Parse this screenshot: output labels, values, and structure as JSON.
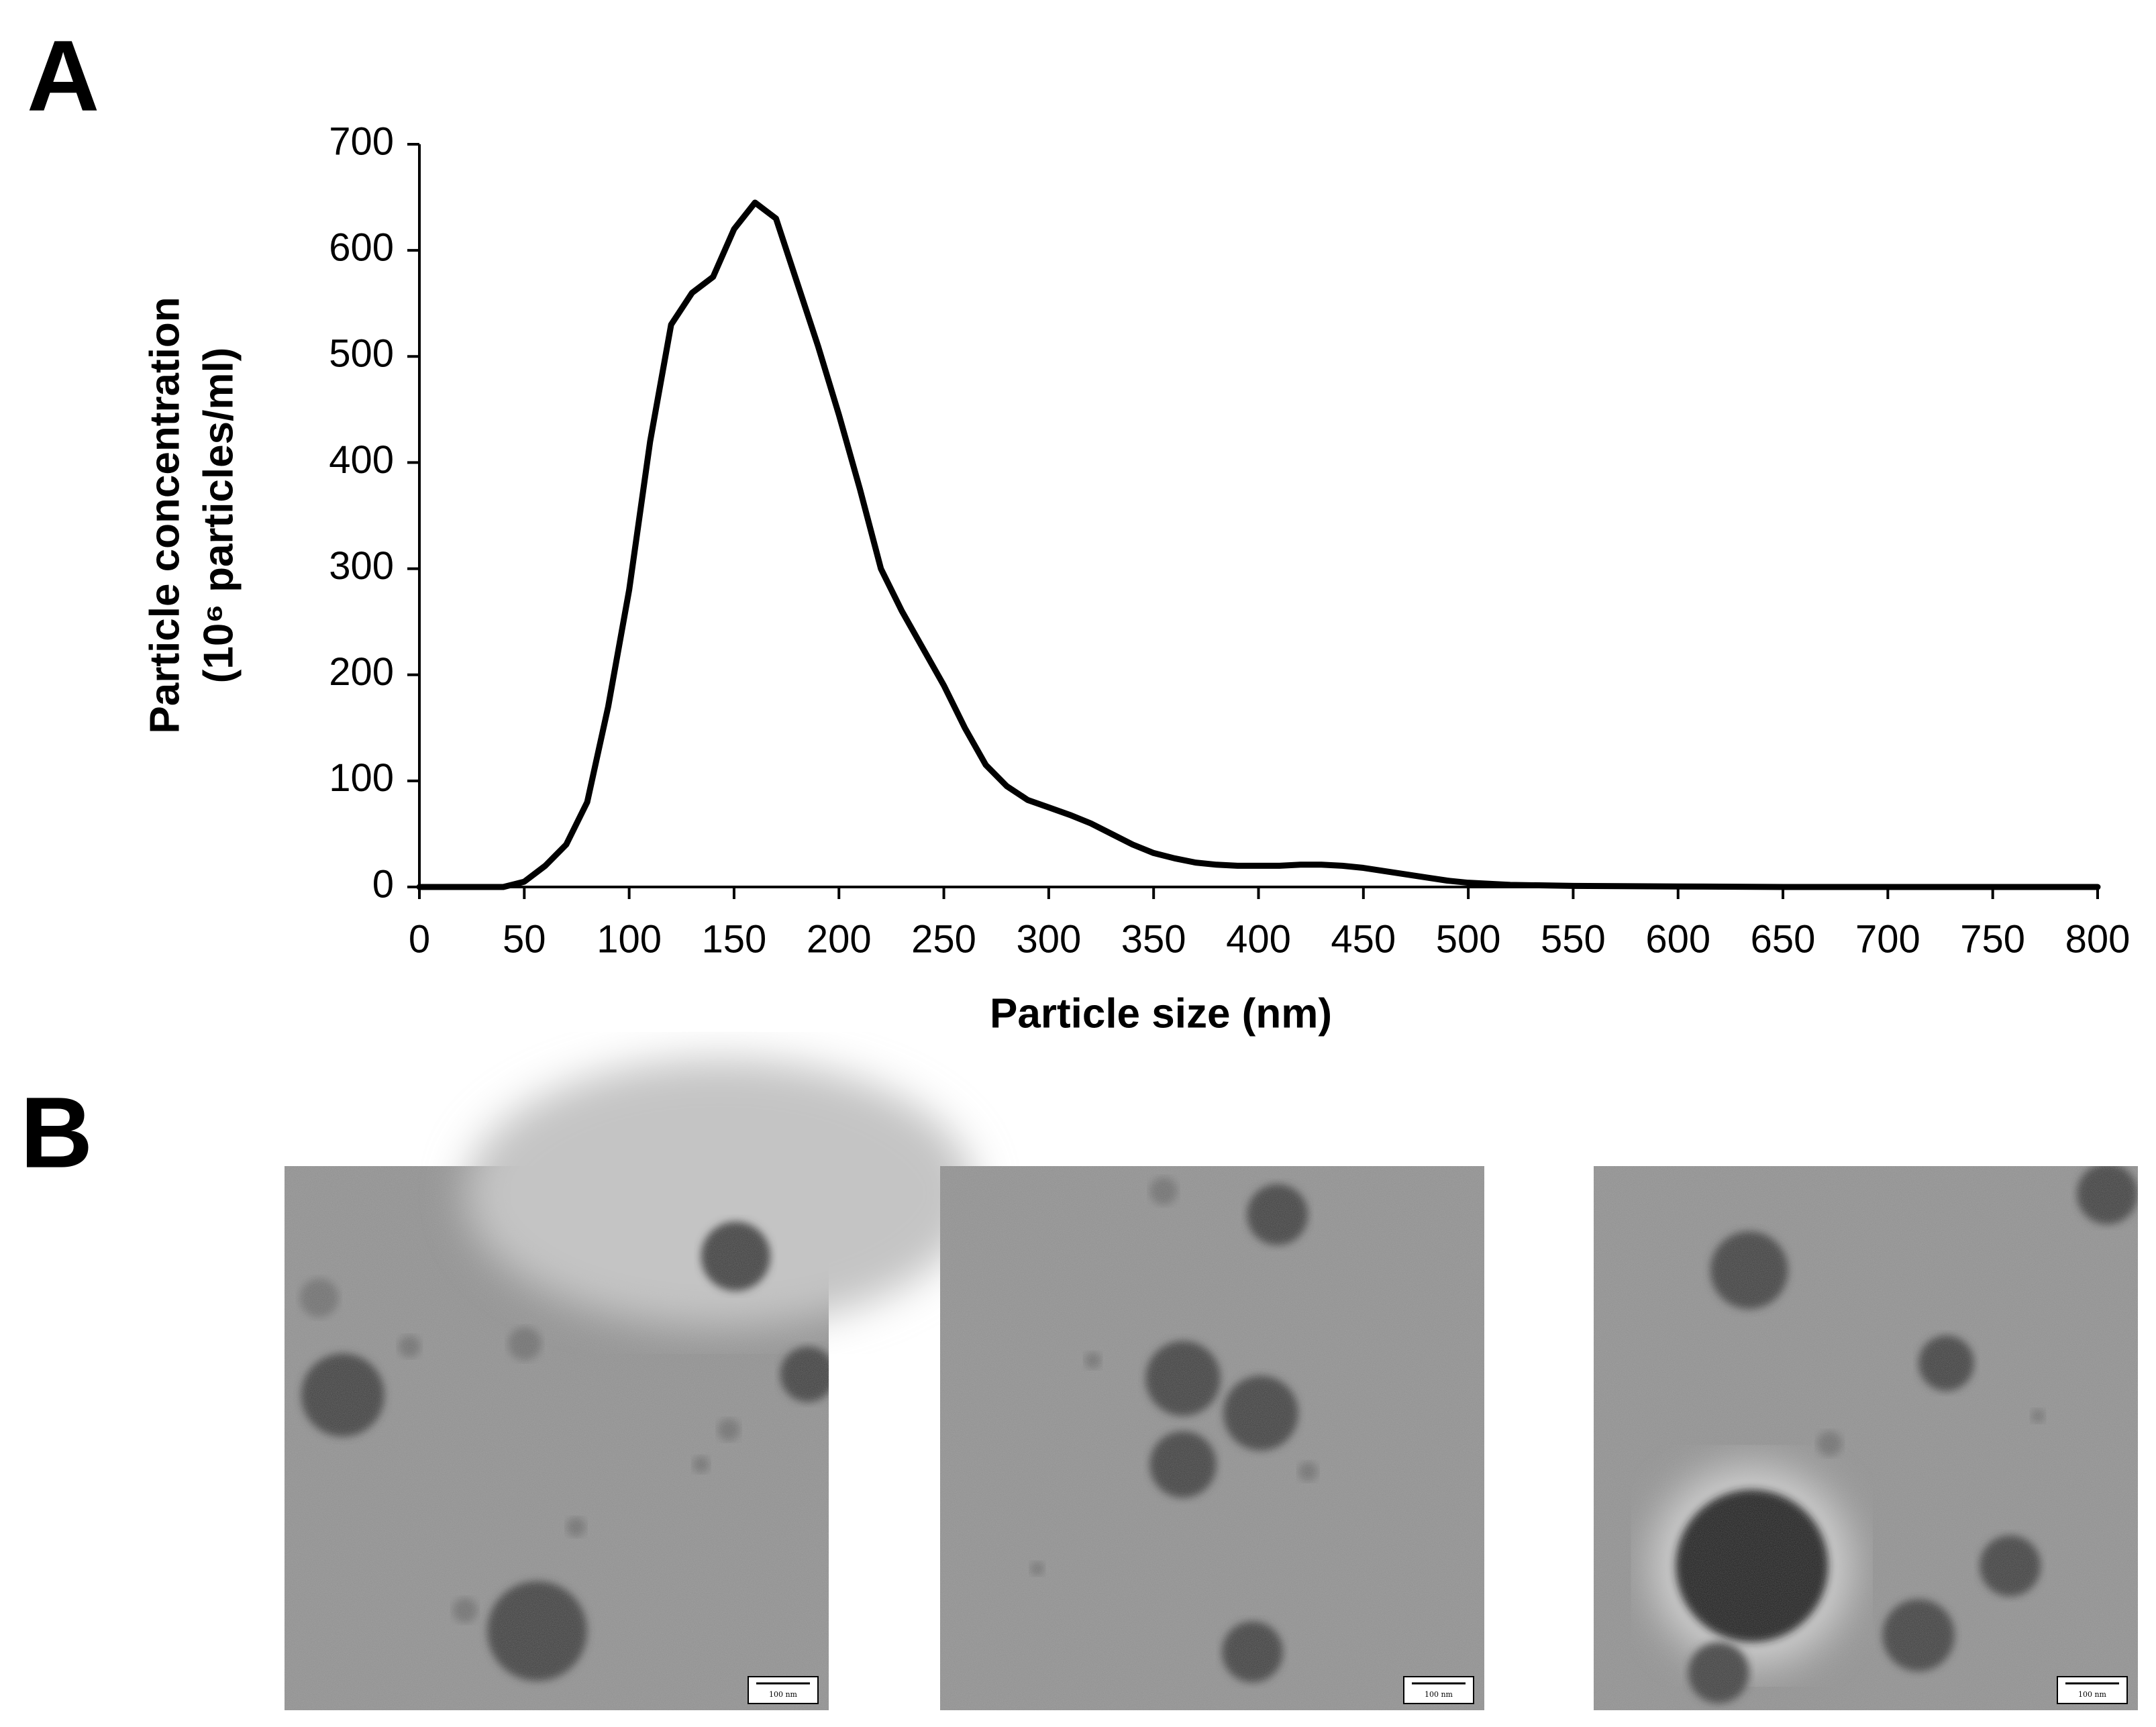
{
  "chart_data": {
    "type": "line",
    "panel_label": "A",
    "xlabel": "Particle size (nm)",
    "ylabel": [
      "Particle concentration",
      "(10⁶ particles/ml)"
    ],
    "x": [
      0,
      40,
      50,
      60,
      70,
      80,
      90,
      100,
      110,
      120,
      130,
      140,
      150,
      160,
      170,
      180,
      190,
      200,
      210,
      220,
      230,
      240,
      250,
      260,
      270,
      280,
      290,
      300,
      310,
      320,
      330,
      340,
      350,
      360,
      370,
      380,
      390,
      400,
      410,
      420,
      430,
      440,
      450,
      460,
      470,
      480,
      490,
      500,
      520,
      550,
      600,
      650,
      700,
      800
    ],
    "series": [
      {
        "color": "#000000",
        "values": [
          0,
          0,
          5,
          20,
          40,
          80,
          170,
          280,
          420,
          530,
          560,
          575,
          620,
          645,
          630,
          570,
          510,
          445,
          375,
          300,
          260,
          225,
          190,
          150,
          115,
          95,
          82,
          75,
          68,
          60,
          50,
          40,
          32,
          27,
          23,
          21,
          20,
          20,
          20,
          21,
          21,
          20,
          18,
          15,
          12,
          9,
          6,
          4,
          2,
          1,
          0.5,
          0,
          0,
          0
        ]
      }
    ],
    "xlim": [
      0,
      800
    ],
    "xticks": [
      0,
      50,
      100,
      150,
      200,
      250,
      300,
      350,
      400,
      450,
      500,
      550,
      600,
      650,
      700,
      750,
      800
    ],
    "ylim": [
      0,
      700
    ],
    "yticks": [
      0,
      100,
      200,
      300,
      400,
      500,
      600,
      700
    ],
    "grid": false
  },
  "panel_b": {
    "label": "B",
    "images": [
      {
        "scale_bar": "100 nm"
      },
      {
        "scale_bar": "100 nm"
      },
      {
        "scale_bar": "100 nm"
      }
    ]
  }
}
